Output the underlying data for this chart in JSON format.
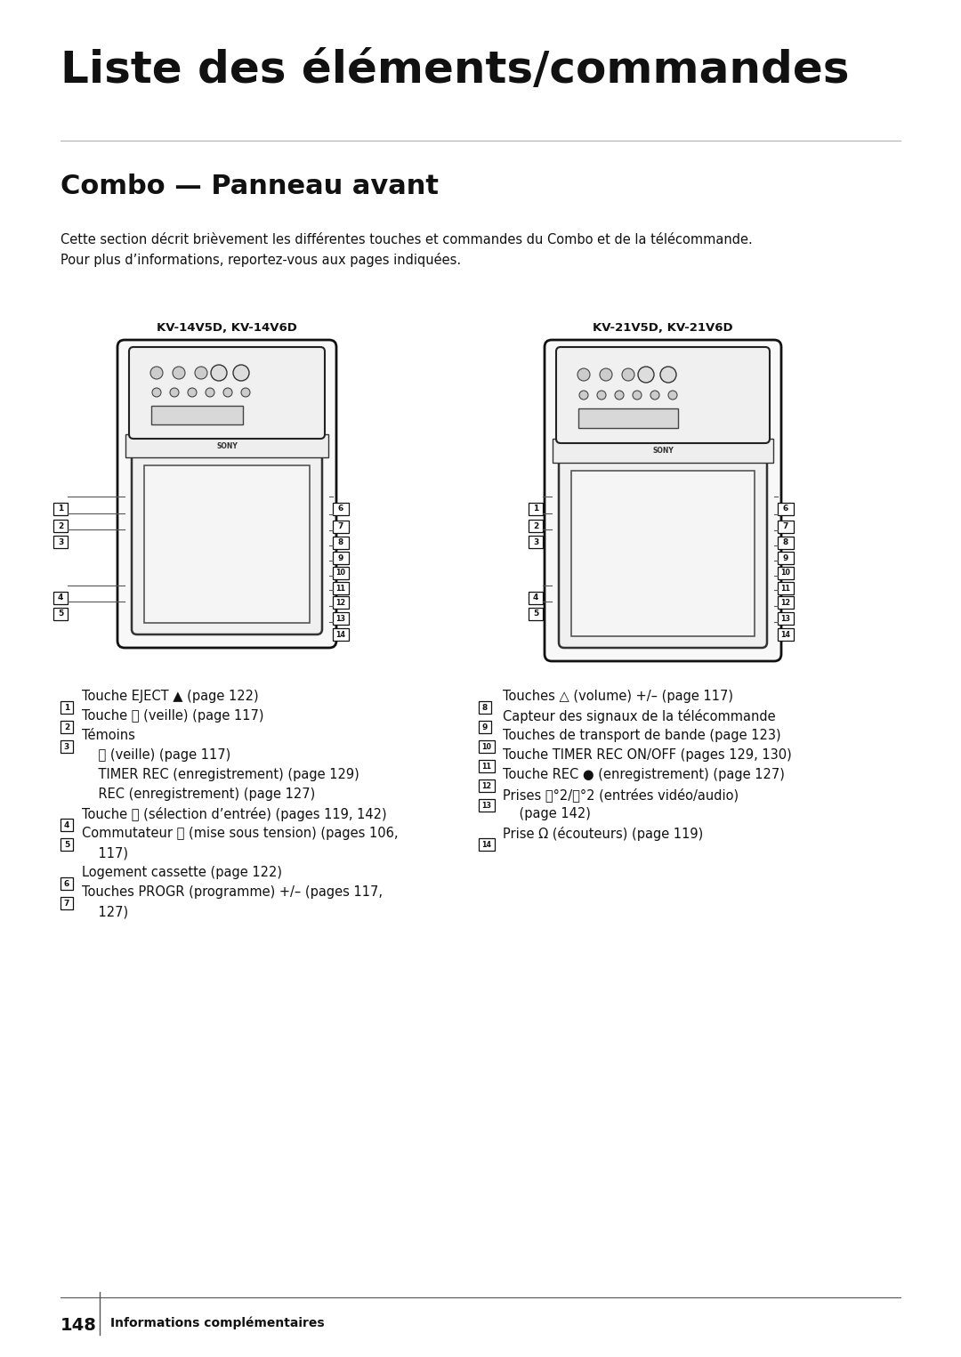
{
  "bg_color": "#ffffff",
  "text_color": "#1a1a1a",
  "title": "Liste des éléments/commandes",
  "subtitle": "Combo — Panneau avant",
  "intro_line1": "Cette section décrit brièvement les différentes touches et commandes du Combo et de la télécommande.",
  "intro_line2": "Pour plus d’informations, reportez-vous aux pages indiquées.",
  "label_left": "KV-14V5D, KV-14V6D",
  "label_right": "KV-21V5D, KV-21V6D",
  "page_number": "148",
  "page_label": "Informations complémentaires",
  "left_items": [
    [
      "1",
      "Touche EJECT ▲ (page 122)"
    ],
    [
      "2",
      "Touche ⏻ (veille) (page 117)"
    ],
    [
      "3",
      "Témoins"
    ],
    [
      "",
      "    ⏻ (veille) (page 117)"
    ],
    [
      "",
      "    TIMER REC (enregistrement) (page 129)"
    ],
    [
      "",
      "    REC (enregistrement) (page 127)"
    ],
    [
      "4",
      "Touche ⎆ (sélection d’entrée) (pages 119, 142)"
    ],
    [
      "5",
      "Commutateur ⓘ (mise sous tension) (pages 106,"
    ],
    [
      "",
      "    117)"
    ],
    [
      "6",
      "Logement cassette (page 122)"
    ],
    [
      "7",
      "Touches PROGR (programme) +/– (pages 117,"
    ],
    [
      "",
      "    127)"
    ]
  ],
  "right_items": [
    [
      "8",
      "Touches △ (volume) +/– (page 117)"
    ],
    [
      "9",
      "Capteur des signaux de la télécommande"
    ],
    [
      "10",
      "Touches de transport de bande (page 123)"
    ],
    [
      "11",
      "Touche TIMER REC ON/OFF (pages 129, 130)"
    ],
    [
      "12",
      "Touche REC ● (enregistrement) (page 127)"
    ],
    [
      "13",
      "Prises ⎆°2/⎆°2 (entrées vidéo/audio)"
    ],
    [
      "",
      "    (page 142)"
    ],
    [
      "14",
      "Prise Ω (écouteurs) (page 119)"
    ]
  ]
}
